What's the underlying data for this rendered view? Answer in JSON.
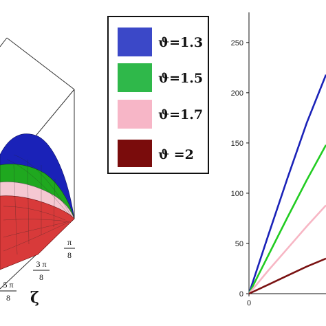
{
  "chart_data": [
    {
      "type": "surface",
      "xlabel": "ζ",
      "x_ticks": [
        "π/8",
        "3π/8",
        "5π/8"
      ],
      "series": [
        {
          "name": "ϑ=1.3",
          "color": "#1a22b8"
        },
        {
          "name": "ϑ=1.5",
          "color": "#1fa81f"
        },
        {
          "name": "ϑ=1.7",
          "color": "#f5b8c6"
        },
        {
          "name": "ϑ =2",
          "color": "#c82828"
        }
      ]
    },
    {
      "type": "line",
      "ylim": [
        0,
        280
      ],
      "y_ticks": [
        0,
        50,
        100,
        150,
        200,
        250
      ],
      "x_ticks": [
        0
      ],
      "series": [
        {
          "name": "ϑ=1.3",
          "color": "#1a22b8",
          "x": [
            0,
            0.25,
            0.5,
            0.75,
            1.0
          ],
          "y": [
            0,
            58,
            115,
            170,
            218
          ]
        },
        {
          "name": "ϑ=1.5",
          "color": "#22cc22",
          "x": [
            0,
            0.25,
            0.5,
            0.75,
            1.0
          ],
          "y": [
            0,
            38,
            76,
            113,
            148
          ]
        },
        {
          "name": "ϑ=1.7",
          "color": "#f7b6c4",
          "x": [
            0,
            0.25,
            0.5,
            0.75,
            1.0
          ],
          "y": [
            0,
            23,
            45,
            67,
            88
          ]
        },
        {
          "name": "ϑ =2",
          "color": "#7a1212",
          "x": [
            0,
            0.25,
            0.5,
            0.75,
            1.0
          ],
          "y": [
            0,
            9,
            18,
            27,
            35
          ]
        }
      ]
    }
  ],
  "legend": {
    "items": [
      {
        "label": "ϑ=1.3",
        "color": "#3b48c8"
      },
      {
        "label": "ϑ=1.5",
        "color": "#2fb84a"
      },
      {
        "label": "ϑ=1.7",
        "color": "#f7b6c7"
      },
      {
        "label": "ϑ =2",
        "color": "#7a0c0c"
      }
    ]
  },
  "left_axis": {
    "zeta_label": "ζ",
    "ticks": [
      {
        "num": "π",
        "den": "8"
      },
      {
        "num": "3 π",
        "den": "8"
      },
      {
        "num": "5 π",
        "den": "8"
      }
    ]
  }
}
